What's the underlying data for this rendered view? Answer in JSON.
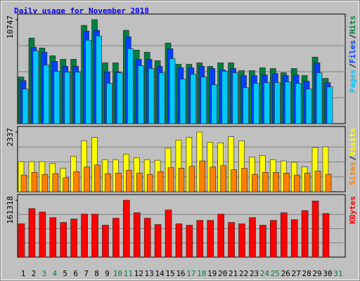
{
  "chart_data": [
    {
      "type": "bar",
      "title": "Daily usage for November 2018",
      "ylim": [
        0,
        10747
      ],
      "yticks": [
        10747
      ],
      "legend_separator": "/",
      "series": [
        {
          "name": "Hits",
          "color": "#008040",
          "values": [
            4825,
            8846,
            7822,
            7018,
            6652,
            6652,
            10161,
            10747,
            6287,
            6287,
            9650,
            7603,
            7383,
            6506,
            8334,
            6141,
            6141,
            6287,
            5921,
            6287,
            6287,
            5483,
            5483,
            5775,
            5702,
            5264,
            5702,
            4971,
            6872,
            4679,
            null
          ]
        },
        {
          "name": "Files",
          "color": "#0040ff",
          "values": [
            4459,
            7895,
            7383,
            6433,
            5921,
            5921,
            9576,
            9649,
            5336,
            5336,
            8991,
            6652,
            6652,
            5921,
            7749,
            5775,
            5775,
            5921,
            5702,
            5556,
            5702,
            4971,
            4971,
            5044,
            5190,
            4971,
            5044,
            4386,
            6287,
            4240,
            null
          ]
        },
        {
          "name": "Pages",
          "color": "#00c8ff",
          "values": [
            3582,
            7529,
            6067,
            5409,
            5336,
            5336,
            8626,
            9064,
            4167,
            5263,
            7749,
            5994,
            5702,
            5263,
            6725,
            4605,
            5117,
            4825,
            4021,
            5409,
            5263,
            3728,
            4167,
            4240,
            4240,
            4313,
            4167,
            3582,
            5263,
            3801,
            null
          ]
        }
      ]
    },
    {
      "type": "bar",
      "ylim": [
        0,
        2337
      ],
      "yticks": [
        2337
      ],
      "legend_separator": "/",
      "series": [
        {
          "name": "Visits",
          "color": "#ffff00",
          "values": [
            1182,
            1182,
            1182,
            1103,
            919,
            1392,
            1996,
            2127,
            1260,
            1260,
            1471,
            1339,
            1260,
            1234,
            1707,
            2022,
            2127,
            2337,
            1943,
            1917,
            2153,
            1996,
            1365,
            1418,
            1260,
            1208,
            1155,
            972,
            1733,
            1759,
            null
          ]
        },
        {
          "name": "Sites",
          "color": "#ff8000",
          "values": [
            657,
            762,
            683,
            709,
            551,
            788,
            972,
            1050,
            709,
            735,
            840,
            735,
            683,
            788,
            945,
            919,
            998,
            1208,
            972,
            1024,
            867,
            919,
            683,
            762,
            762,
            735,
            657,
            735,
            814,
            683,
            null
          ]
        }
      ]
    },
    {
      "type": "bar",
      "ylim": [
        0,
        161318
      ],
      "yticks": [
        161318
      ],
      "categories": [
        "1",
        "2",
        "3",
        "4",
        "5",
        "6",
        "7",
        "8",
        "9",
        "10",
        "11",
        "12",
        "13",
        "14",
        "15",
        "16",
        "17",
        "18",
        "19",
        "20",
        "21",
        "22",
        "23",
        "24",
        "25",
        "26",
        "27",
        "28",
        "29",
        "30",
        "31"
      ],
      "category_colors": [
        "#000000",
        "#000000",
        "#008040",
        "#008040",
        "#000000",
        "#000000",
        "#000000",
        "#000000",
        "#000000",
        "#008040",
        "#008040",
        "#000000",
        "#000000",
        "#000000",
        "#000000",
        "#000000",
        "#008040",
        "#008040",
        "#000000",
        "#000000",
        "#000000",
        "#000000",
        "#000000",
        "#008040",
        "#008040",
        "#000000",
        "#000000",
        "#000000",
        "#000000",
        "#000000",
        "#008040"
      ],
      "series": [
        {
          "name": "KBytes",
          "color": "#ff0000",
          "values": [
            94416,
            137690,
            127855,
            112119,
            98350,
            108185,
            121954,
            121954,
            90482,
            110152,
            161318,
            125888,
            110152,
            92449,
            133756,
            94416,
            90482,
            104251,
            104251,
            121954,
            98350,
            94416,
            112119,
            90482,
            104251,
            125888,
            106218,
            131789,
            159331,
            123921,
            null
          ]
        }
      ]
    }
  ]
}
